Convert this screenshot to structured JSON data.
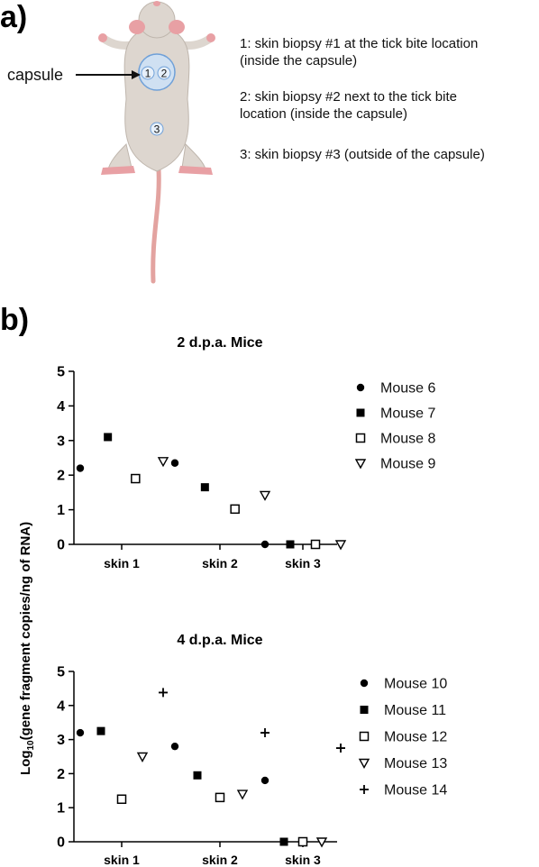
{
  "panel_a": {
    "label": "a)",
    "capsule_label": "capsule",
    "site_markers": [
      "1",
      "2",
      "3"
    ],
    "descriptions": [
      {
        "line1": "1: skin biopsy #1 at the tick bite location",
        "line2": "(inside the capsule)"
      },
      {
        "line1": "2: skin biopsy #2 next to the tick bite",
        "line2": "location (inside the capsule)"
      },
      {
        "line1": "3: skin biopsy #3 (outside of the capsule)",
        "line2": ""
      }
    ]
  },
  "panel_b": {
    "label": "b)"
  },
  "chart_data": [
    {
      "type": "scatter",
      "title": "2 d.p.a. Mice",
      "categories": [
        "skin 1",
        "skin 2",
        "skin 3"
      ],
      "ylabel_prefix": "Log",
      "ylabel_sub": "10",
      "ylabel_rest": "(gene fragment copies/ng of RNA)",
      "ylim": [
        0,
        5
      ],
      "yticks": [
        "0",
        "1",
        "2",
        "3",
        "4",
        "5"
      ],
      "legend_position": "right",
      "series": [
        {
          "name": "Mouse 6",
          "marker": "circle",
          "values": [
            2.2,
            2.35,
            0
          ]
        },
        {
          "name": "Mouse 7",
          "marker": "square",
          "values": [
            3.1,
            1.65,
            0
          ]
        },
        {
          "name": "Mouse 8",
          "marker": "open-square",
          "values": [
            1.9,
            1.02,
            0
          ]
        },
        {
          "name": "Mouse 9",
          "marker": "open-triangle",
          "values": [
            2.4,
            1.42,
            0
          ]
        }
      ]
    },
    {
      "type": "scatter",
      "title": "4 d.p.a. Mice",
      "categories": [
        "skin 1",
        "skin 2",
        "skin 3"
      ],
      "ylim": [
        0,
        5
      ],
      "yticks": [
        "0",
        "1",
        "2",
        "3",
        "4",
        "5"
      ],
      "legend_position": "right",
      "series": [
        {
          "name": "Mouse 10",
          "marker": "circle",
          "values": [
            3.2,
            2.8,
            1.8
          ]
        },
        {
          "name": "Mouse 11",
          "marker": "square",
          "values": [
            3.25,
            1.95,
            0
          ]
        },
        {
          "name": "Mouse 12",
          "marker": "open-square",
          "values": [
            1.25,
            1.3,
            0
          ]
        },
        {
          "name": "Mouse 13",
          "marker": "open-triangle",
          "values": [
            2.5,
            1.4,
            0
          ]
        },
        {
          "name": "Mouse 14",
          "marker": "plus",
          "values": [
            4.38,
            3.2,
            2.75
          ]
        }
      ]
    }
  ],
  "colors": {
    "fur": "#ddd6cf",
    "skin": "#e8a0a4",
    "capsule": "#cfe0f2",
    "capsule_border": "#6fa0d8"
  }
}
